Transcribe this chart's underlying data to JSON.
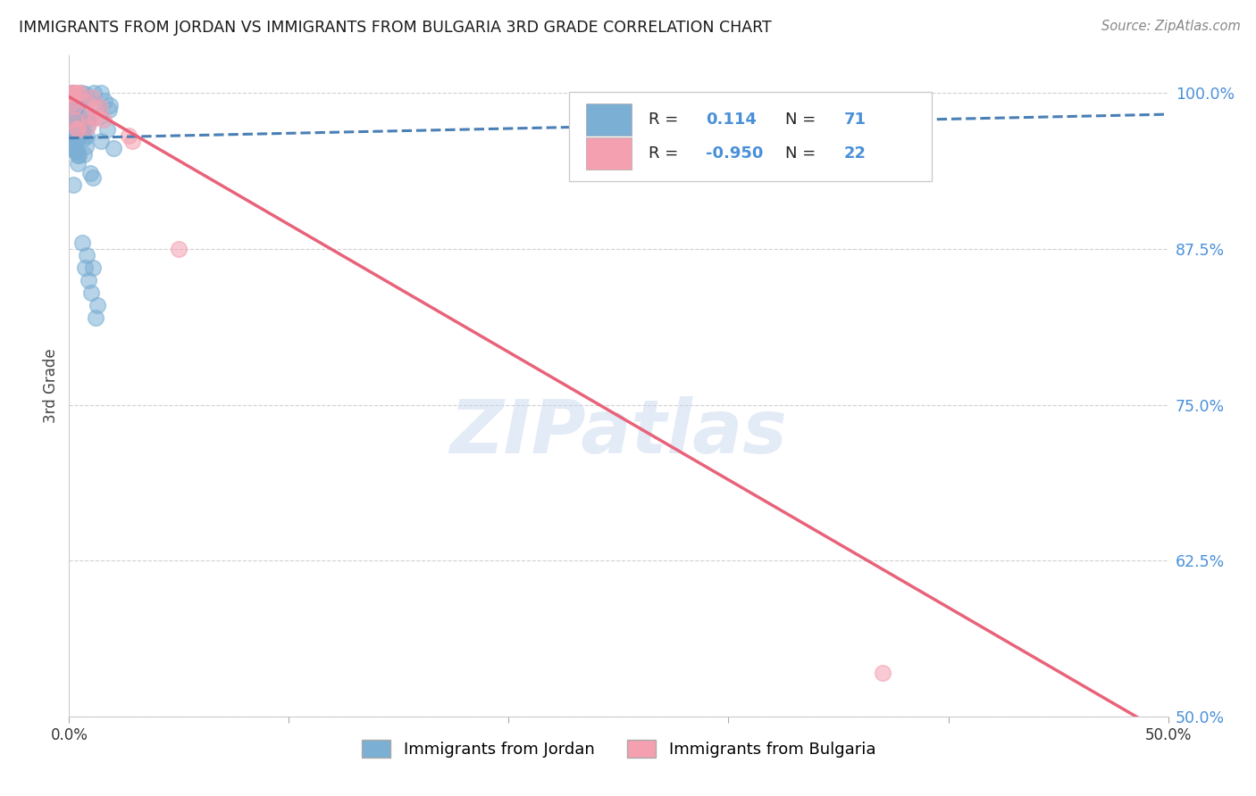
{
  "title": "IMMIGRANTS FROM JORDAN VS IMMIGRANTS FROM BULGARIA 3RD GRADE CORRELATION CHART",
  "source": "Source: ZipAtlas.com",
  "ylabel": "3rd Grade",
  "ytick_labels": [
    "100.0%",
    "87.5%",
    "75.0%",
    "62.5%",
    "50.0%"
  ],
  "ytick_vals": [
    1.0,
    0.875,
    0.75,
    0.625,
    0.5
  ],
  "jordan_R": 0.114,
  "jordan_N": 71,
  "bulgaria_R": -0.95,
  "bulgaria_N": 22,
  "jordan_color": "#7bafd4",
  "bulgaria_color": "#f4a0b0",
  "jordan_line_color": "#4a7fb5",
  "bulgaria_line_color": "#e8637a",
  "watermark": "ZIPatlas",
  "background_color": "#ffffff",
  "grid_color": "#d0d0d0",
  "tick_color_right": "#4a90d9",
  "legend_label_jordan": "Immigrants from Jordan",
  "legend_label_bulgaria": "Immigrants from Bulgaria",
  "xlim": [
    0.0,
    0.5
  ],
  "ylim": [
    0.5,
    1.03
  ]
}
